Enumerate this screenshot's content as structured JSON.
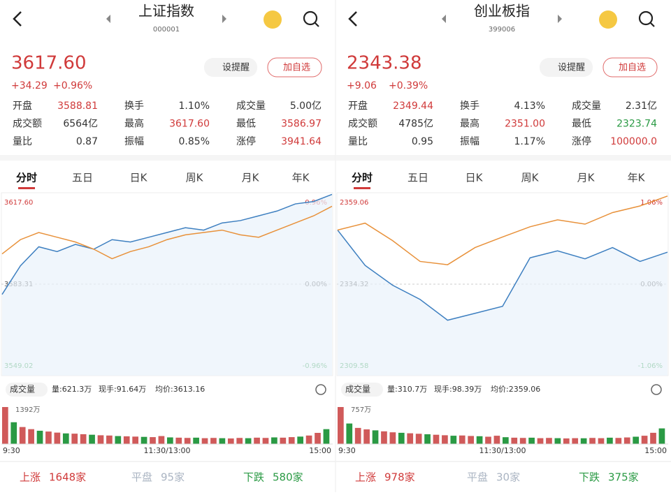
{
  "panels": [
    {
      "header": {
        "title": "上证指数",
        "code": "000001"
      },
      "price": "3617.60",
      "change": "+34.29",
      "change_pct": "+0.96%",
      "buttons": [
        "设提醒",
        "加自选"
      ],
      "stats": [
        [
          {
            "label": "开盘",
            "value": "3588.81",
            "color": "#d03a3a"
          },
          {
            "label": "换手",
            "value": "1.10%",
            "color": "#333"
          },
          {
            "label": "成交量",
            "value": "5.00亿",
            "color": "#333"
          }
        ],
        [
          {
            "label": "成交额",
            "value": "6564亿",
            "color": "#333"
          },
          {
            "label": "最高",
            "value": "3617.60",
            "color": "#d03a3a"
          },
          {
            "label": "最低",
            "value": "3586.97",
            "color": "#d03a3a"
          }
        ],
        [
          {
            "label": "量比",
            "value": "0.87",
            "color": "#333"
          },
          {
            "label": "振幅",
            "value": "0.85%",
            "color": "#333"
          },
          {
            "label": "涨停",
            "value": "3941.64",
            "color": "#d03a3a"
          }
        ]
      ],
      "tabs": [
        "分时",
        "五日",
        "日K",
        "周K",
        "月K",
        "年K"
      ],
      "chart": {
        "ylim": [
          3549.02,
          3617.6
        ],
        "yticks": [
          {
            "value": 3617.6,
            "label": "3617.60"
          },
          {
            "value": 3583.31,
            "label": "3583.31"
          },
          {
            "value": 3549.02,
            "label": "3549.02"
          }
        ],
        "y2ticks": [
          {
            "value": 0.96,
            "label": "0.96%"
          },
          {
            "value": 0,
            "label": "0.00%"
          },
          {
            "value": -0.96,
            "label": "-0.96%"
          }
        ],
        "series": [
          {
            "color": "#3d7fc0",
            "values": [
              3579,
              3591,
              3599,
              3597,
              3600,
              3598,
              3602,
              3601,
              3603,
              3605,
              3607,
              3606,
              3609,
              3610,
              3612,
              3614,
              3617,
              3618,
              3621
            ]
          },
          {
            "color": "#e8913a",
            "values": [
              3596,
              3602,
              3605,
              3603,
              3601,
              3598,
              3594,
              3597,
              3599,
              3602,
              3604,
              3605,
              3606,
              3604,
              3603,
              3606,
              3609,
              3612,
              3616
            ]
          }
        ]
      },
      "volume": {
        "label": "成交量",
        "info": [
          "量:621.3万",
          "现手:91.64万",
          "均价:3613.16"
        ],
        "ylim": [
          0,
          1392
        ],
        "yticks": [
          {
            "value": 1392,
            "label": "1392万"
          }
        ],
        "values": [
          1392,
          820,
          640,
          560,
          500,
          470,
          430,
          400,
          390,
          370,
          350,
          330,
          320,
          300,
          290,
          280,
          270,
          260,
          300,
          250,
          240,
          230,
          240,
          220,
          230,
          220,
          210,
          230,
          220,
          240,
          230,
          250,
          240,
          260,
          280,
          320,
          420,
          560
        ],
        "times": [
          "9:30",
          "11:30/13:00",
          "15:00"
        ]
      },
      "footer": [
        {
          "label": "上涨",
          "value": "1648家",
          "color": "#d03a3a"
        },
        {
          "label": "平盘",
          "value": "95家",
          "color": "#aab4c2"
        },
        {
          "label": "下跌",
          "value": "580家",
          "color": "#2a9a44"
        }
      ]
    },
    {
      "header": {
        "title": "创业板指",
        "code": "399006"
      },
      "price": "2343.38",
      "change": "+9.06",
      "change_pct": "+0.39%",
      "buttons": [
        "设提醒",
        "加自选"
      ],
      "stats": [
        [
          {
            "label": "开盘",
            "value": "2349.44",
            "color": "#d03a3a"
          },
          {
            "label": "换手",
            "value": "4.13%",
            "color": "#333"
          },
          {
            "label": "成交量",
            "value": "2.31亿",
            "color": "#333"
          }
        ],
        [
          {
            "label": "成交额",
            "value": "4785亿",
            "color": "#333"
          },
          {
            "label": "最高",
            "value": "2351.00",
            "color": "#d03a3a"
          },
          {
            "label": "最低",
            "value": "2323.74",
            "color": "#2a9a44"
          }
        ],
        [
          {
            "label": "量比",
            "value": "0.95",
            "color": "#333"
          },
          {
            "label": "振幅",
            "value": "1.17%",
            "color": "#333"
          },
          {
            "label": "涨停",
            "value": "100000.0",
            "color": "#d03a3a"
          }
        ]
      ],
      "tabs": [
        "分时",
        "五日",
        "日K",
        "周K",
        "月K",
        "年K"
      ],
      "chart": {
        "ylim": [
          2309.58,
          2359.06
        ],
        "yticks": [
          {
            "value": 2359.06,
            "label": "2359.06"
          },
          {
            "value": 2334.32,
            "label": "2334.32"
          },
          {
            "value": 2309.58,
            "label": "2309.58"
          }
        ],
        "y2ticks": [
          {
            "value": 1.06,
            "label": "1.06%"
          },
          {
            "value": 0,
            "label": "0.00%"
          },
          {
            "value": -1.06,
            "label": "-1.06%"
          }
        ],
        "series": [
          {
            "color": "#3d7fc0",
            "values": [
              2350.7,
              2340,
              2334,
              2329.7,
              2323.4,
              2325.5,
              2327.6,
              2342.3,
              2344.4,
              2342,
              2345.4,
              2341.2,
              2344
            ]
          },
          {
            "color": "#e8913a",
            "values": [
              2350.7,
              2352.8,
              2347.5,
              2341.2,
              2340.2,
              2345.4,
              2348.6,
              2351.7,
              2353.8,
              2352.5,
              2356,
              2358,
              2361
            ]
          }
        ]
      },
      "volume": {
        "label": "成交量",
        "info": [
          "量:310.7万",
          "现手:98.39万",
          "均价:2359.06"
        ],
        "ylim": [
          0,
          757
        ],
        "yticks": [
          {
            "value": 757,
            "label": "757万"
          }
        ],
        "values": [
          757,
          420,
          330,
          300,
          280,
          260,
          240,
          230,
          220,
          210,
          200,
          190,
          180,
          170,
          175,
          165,
          160,
          150,
          170,
          140,
          130,
          125,
          130,
          120,
          125,
          120,
          115,
          120,
          118,
          125,
          120,
          130,
          125,
          135,
          150,
          170,
          230,
          320
        ],
        "times": [
          "9:30",
          "11:30/13:00",
          "15:00"
        ]
      },
      "footer": [
        {
          "label": "上涨",
          "value": "978家",
          "color": "#d03a3a"
        },
        {
          "label": "平盘",
          "value": "30家",
          "color": "#aab4c2"
        },
        {
          "label": "下跌",
          "value": "375家",
          "color": "#2a9a44"
        }
      ]
    }
  ]
}
